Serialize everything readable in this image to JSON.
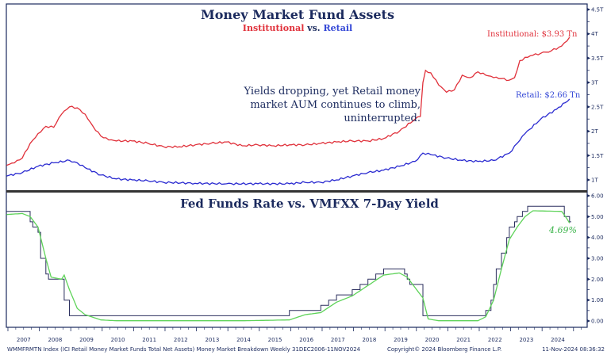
{
  "chart_data": [
    {
      "type": "line",
      "title": "Money Market Fund Assets",
      "subtitle": {
        "a": "Institutional",
        "mid": "vs.",
        "b": "Retail"
      },
      "annotation": "Yields dropping, yet Retail money market AUM continues to climb, uninterrupted.",
      "ylim": [
        0.8,
        4.6
      ],
      "y_ticks": [
        1,
        1.5,
        2,
        2.5,
        3,
        3.5,
        4,
        4.5
      ],
      "y_tick_labels": [
        "1T",
        "1.5T",
        "2T",
        "2.5T",
        "3T",
        "3.5T",
        "4T",
        "4.5T"
      ],
      "y_axis_side": "right",
      "grid": false,
      "series": [
        {
          "name": "Institutional",
          "label": "Institutional: $3.93 Tn",
          "color": "#e0303a",
          "points": [
            [
              "2006-12",
              1.3
            ],
            [
              "2007-03",
              1.35
            ],
            [
              "2007-06",
              1.45
            ],
            [
              "2007-09",
              1.75
            ],
            [
              "2007-12",
              1.95
            ],
            [
              "2008-03",
              2.1
            ],
            [
              "2008-06",
              2.08
            ],
            [
              "2008-09",
              2.35
            ],
            [
              "2008-12",
              2.5
            ],
            [
              "2009-03",
              2.48
            ],
            [
              "2009-06",
              2.35
            ],
            [
              "2009-09",
              2.1
            ],
            [
              "2009-12",
              1.9
            ],
            [
              "2010-03",
              1.82
            ],
            [
              "2010-06",
              1.8
            ],
            [
              "2010-12",
              1.8
            ],
            [
              "2011-06",
              1.75
            ],
            [
              "2011-12",
              1.68
            ],
            [
              "2012-06",
              1.68
            ],
            [
              "2012-12",
              1.72
            ],
            [
              "2013-06",
              1.75
            ],
            [
              "2013-12",
              1.78
            ],
            [
              "2014-06",
              1.7
            ],
            [
              "2014-12",
              1.72
            ],
            [
              "2015-06",
              1.7
            ],
            [
              "2015-12",
              1.72
            ],
            [
              "2016-06",
              1.72
            ],
            [
              "2016-12",
              1.75
            ],
            [
              "2017-06",
              1.78
            ],
            [
              "2017-12",
              1.8
            ],
            [
              "2018-06",
              1.8
            ],
            [
              "2018-12",
              1.85
            ],
            [
              "2019-06",
              2.0
            ],
            [
              "2019-12",
              2.25
            ],
            [
              "2020-02",
              2.3
            ],
            [
              "2020-03",
              3.0
            ],
            [
              "2020-04",
              3.25
            ],
            [
              "2020-06",
              3.2
            ],
            [
              "2020-09",
              2.95
            ],
            [
              "2020-12",
              2.8
            ],
            [
              "2021-03",
              2.85
            ],
            [
              "2021-06",
              3.15
            ],
            [
              "2021-09",
              3.1
            ],
            [
              "2021-12",
              3.22
            ],
            [
              "2022-03",
              3.15
            ],
            [
              "2022-06",
              3.1
            ],
            [
              "2022-09",
              3.08
            ],
            [
              "2022-12",
              3.05
            ],
            [
              "2023-02",
              3.1
            ],
            [
              "2023-04",
              3.45
            ],
            [
              "2023-08",
              3.55
            ],
            [
              "2023-12",
              3.6
            ],
            [
              "2024-04",
              3.65
            ],
            [
              "2024-08",
              3.75
            ],
            [
              "2024-11",
              3.93
            ]
          ]
        },
        {
          "name": "Retail",
          "label": "Retail: $2.66 Tn",
          "color": "#2a2ad0",
          "points": [
            [
              "2006-12",
              1.08
            ],
            [
              "2007-06",
              1.15
            ],
            [
              "2007-12",
              1.28
            ],
            [
              "2008-06",
              1.35
            ],
            [
              "2008-12",
              1.4
            ],
            [
              "2009-03",
              1.35
            ],
            [
              "2009-06",
              1.25
            ],
            [
              "2009-12",
              1.1
            ],
            [
              "2010-06",
              1.02
            ],
            [
              "2010-12",
              1.0
            ],
            [
              "2011-06",
              0.98
            ],
            [
              "2011-12",
              0.95
            ],
            [
              "2012-12",
              0.93
            ],
            [
              "2013-12",
              0.92
            ],
            [
              "2014-12",
              0.92
            ],
            [
              "2015-12",
              0.92
            ],
            [
              "2016-06",
              0.95
            ],
            [
              "2016-12",
              0.95
            ],
            [
              "2017-06",
              1.0
            ],
            [
              "2017-12",
              1.08
            ],
            [
              "2018-06",
              1.15
            ],
            [
              "2018-12",
              1.2
            ],
            [
              "2019-06",
              1.28
            ],
            [
              "2019-12",
              1.38
            ],
            [
              "2020-03",
              1.55
            ],
            [
              "2020-06",
              1.52
            ],
            [
              "2020-12",
              1.45
            ],
            [
              "2021-06",
              1.4
            ],
            [
              "2021-12",
              1.38
            ],
            [
              "2022-06",
              1.4
            ],
            [
              "2022-12",
              1.55
            ],
            [
              "2023-03",
              1.75
            ],
            [
              "2023-06",
              1.95
            ],
            [
              "2023-12",
              2.25
            ],
            [
              "2024-06",
              2.45
            ],
            [
              "2024-11",
              2.66
            ]
          ]
        }
      ]
    },
    {
      "type": "line",
      "title": "Fed Funds Rate vs. VMFXX 7-Day Yield",
      "ylim": [
        -0.1,
        6.2
      ],
      "y_ticks": [
        0,
        1,
        2,
        3,
        4,
        5,
        6
      ],
      "y_tick_labels": [
        "0.00",
        "1.00",
        "2.00",
        "3.00",
        "4.00",
        "5.00",
        "6.00"
      ],
      "y_axis_side": "right",
      "grid": false,
      "series": [
        {
          "name": "Fed Funds Rate",
          "color": "#2b2f5e",
          "step": true,
          "points": [
            [
              "2006-12",
              5.25
            ],
            [
              "2007-09",
              4.75
            ],
            [
              "2007-10",
              4.5
            ],
            [
              "2007-12",
              4.25
            ],
            [
              "2008-01",
              3.0
            ],
            [
              "2008-03",
              2.25
            ],
            [
              "2008-04",
              2.0
            ],
            [
              "2008-10",
              1.0
            ],
            [
              "2008-12",
              0.25
            ],
            [
              "2015-12",
              0.5
            ],
            [
              "2016-12",
              0.75
            ],
            [
              "2017-03",
              1.0
            ],
            [
              "2017-06",
              1.25
            ],
            [
              "2017-12",
              1.5
            ],
            [
              "2018-03",
              1.75
            ],
            [
              "2018-06",
              2.0
            ],
            [
              "2018-09",
              2.25
            ],
            [
              "2018-12",
              2.5
            ],
            [
              "2019-08",
              2.25
            ],
            [
              "2019-09",
              2.0
            ],
            [
              "2019-10",
              1.75
            ],
            [
              "2020-03",
              0.25
            ],
            [
              "2022-03",
              0.5
            ],
            [
              "2022-05",
              1.0
            ],
            [
              "2022-06",
              1.75
            ],
            [
              "2022-07",
              2.5
            ],
            [
              "2022-09",
              3.25
            ],
            [
              "2022-11",
              4.0
            ],
            [
              "2022-12",
              4.5
            ],
            [
              "2023-02",
              4.75
            ],
            [
              "2023-03",
              5.0
            ],
            [
              "2023-05",
              5.25
            ],
            [
              "2023-07",
              5.5
            ],
            [
              "2024-09",
              5.0
            ],
            [
              "2024-11",
              4.75
            ]
          ]
        },
        {
          "name": "VMFXX 7-Day Yield",
          "label": "4.69%",
          "color": "#5fd35a",
          "points": [
            [
              "2006-12",
              5.1
            ],
            [
              "2007-06",
              5.15
            ],
            [
              "2007-09",
              5.0
            ],
            [
              "2007-12",
              4.5
            ],
            [
              "2008-03",
              3.0
            ],
            [
              "2008-05",
              2.1
            ],
            [
              "2008-09",
              2.0
            ],
            [
              "2008-10",
              2.2
            ],
            [
              "2008-12",
              1.5
            ],
            [
              "2009-03",
              0.6
            ],
            [
              "2009-06",
              0.3
            ],
            [
              "2009-12",
              0.05
            ],
            [
              "2010-06",
              0.01
            ],
            [
              "2012-06",
              0.01
            ],
            [
              "2014-06",
              0.01
            ],
            [
              "2015-12",
              0.05
            ],
            [
              "2016-06",
              0.3
            ],
            [
              "2016-12",
              0.4
            ],
            [
              "2017-06",
              0.9
            ],
            [
              "2017-12",
              1.2
            ],
            [
              "2018-06",
              1.7
            ],
            [
              "2018-12",
              2.2
            ],
            [
              "2019-06",
              2.3
            ],
            [
              "2019-09",
              2.1
            ],
            [
              "2019-12",
              1.6
            ],
            [
              "2020-03",
              1.1
            ],
            [
              "2020-05",
              0.1
            ],
            [
              "2020-09",
              0.01
            ],
            [
              "2021-12",
              0.01
            ],
            [
              "2022-03",
              0.2
            ],
            [
              "2022-06",
              1.0
            ],
            [
              "2022-09",
              2.5
            ],
            [
              "2022-12",
              3.9
            ],
            [
              "2023-03",
              4.5
            ],
            [
              "2023-06",
              5.0
            ],
            [
              "2023-09",
              5.28
            ],
            [
              "2024-08",
              5.25
            ],
            [
              "2024-10",
              4.9
            ],
            [
              "2024-11",
              4.69
            ]
          ]
        }
      ]
    }
  ],
  "x_axis": {
    "range": [
      "2006-12",
      "2024-11"
    ],
    "tick_labels": [
      "2007",
      "2008",
      "2009",
      "2010",
      "2011",
      "2012",
      "2013",
      "2014",
      "2015",
      "2016",
      "2017",
      "2018",
      "2019",
      "2020",
      "2021",
      "2022",
      "2023",
      "2024"
    ]
  },
  "footer": {
    "left": "WMMFRMTN Index (ICI Retail Money Market Funds Total Net Assets) Money Market Breakdown  Weekly 31DEC2006-11NOV2024",
    "center": "Copyright© 2024 Bloomberg Finance L.P.",
    "right": "11-Nov-2024 08:36:32"
  }
}
